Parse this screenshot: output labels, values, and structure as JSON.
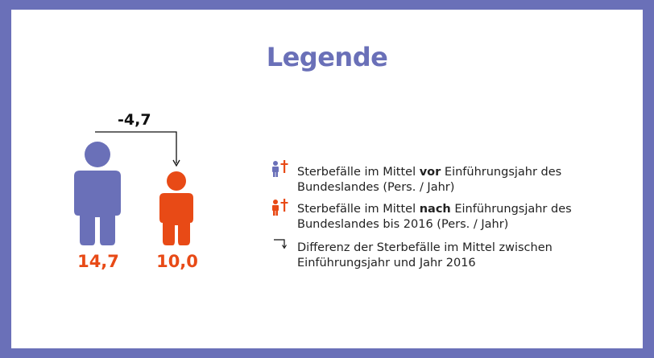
{
  "title": "Legende",
  "difference_value": "-4,7",
  "before_value": "14,7",
  "after_value": "10,0",
  "colors": {
    "before": "#6a70b8",
    "after": "#e84a16",
    "frame": "#6a70b8"
  },
  "legend": {
    "item1": {
      "pre": "Sterbefälle im Mittel ",
      "bold": "vor",
      "post": " Einführungsjahr des Bundeslandes (Pers. / Jahr)"
    },
    "item2": {
      "pre": "Sterbefälle im Mittel ",
      "bold": "nach",
      "post": " Einführungsjahr des Bundeslandes bis 2016 (Pers. / Jahr)"
    },
    "item3": {
      "text": "Differenz der Sterbefälle im Mittel zwischen Einführungsjahr und Jahr 2016"
    }
  },
  "icons": [
    "person-icon",
    "cross-icon",
    "bracket-arrow-icon"
  ]
}
